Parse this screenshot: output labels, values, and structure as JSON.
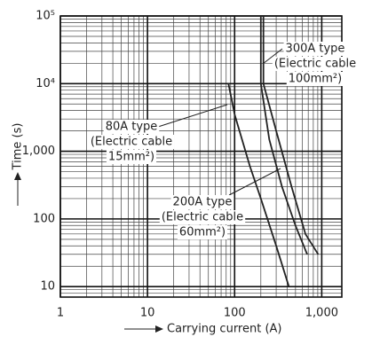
{
  "chart_data": {
    "type": "line",
    "x_label": "Carrying current (A)",
    "y_label": "Time (s)",
    "log_x": true,
    "log_y": true,
    "grid": true,
    "minor_grid": true,
    "xlim": [
      1,
      1700
    ],
    "ylim": [
      7,
      100000
    ],
    "xticks": [
      1,
      10,
      100,
      {
        "value": 1000,
        "label": "1,000"
      }
    ],
    "yticks": [
      10,
      100,
      {
        "value": 1000,
        "label": "1,000"
      },
      {
        "value": 10000,
        "label": "10⁴"
      },
      {
        "value": 100000,
        "label": "10⁵"
      }
    ],
    "series": [
      {
        "name": "80A type",
        "color": "#222222",
        "x": [
          85,
          100,
          150,
          200,
          300,
          420
        ],
        "values": [
          10000,
          3500,
          600,
          200,
          40,
          10
        ]
      },
      {
        "name": "200A type",
        "color": "#222222",
        "x": [
          200,
          200,
          250,
          350,
          500,
          680
        ],
        "values": [
          100000,
          10000,
          1500,
          300,
          80,
          30
        ]
      },
      {
        "name": "300A type",
        "color": "#222222",
        "x": [
          214,
          214,
          300,
          450,
          650,
          910
        ],
        "values": [
          100000,
          10000,
          2000,
          300,
          60,
          30
        ]
      }
    ],
    "annotations": [
      {
        "lines": [
          "80A type",
          "(Electric cable",
          "15mm²)"
        ]
      },
      {
        "lines": [
          "200A type",
          "(Electric cable",
          "60mm²)"
        ]
      },
      {
        "lines": [
          "300A type",
          "(Electric cable",
          "100mm²)"
        ]
      }
    ]
  }
}
